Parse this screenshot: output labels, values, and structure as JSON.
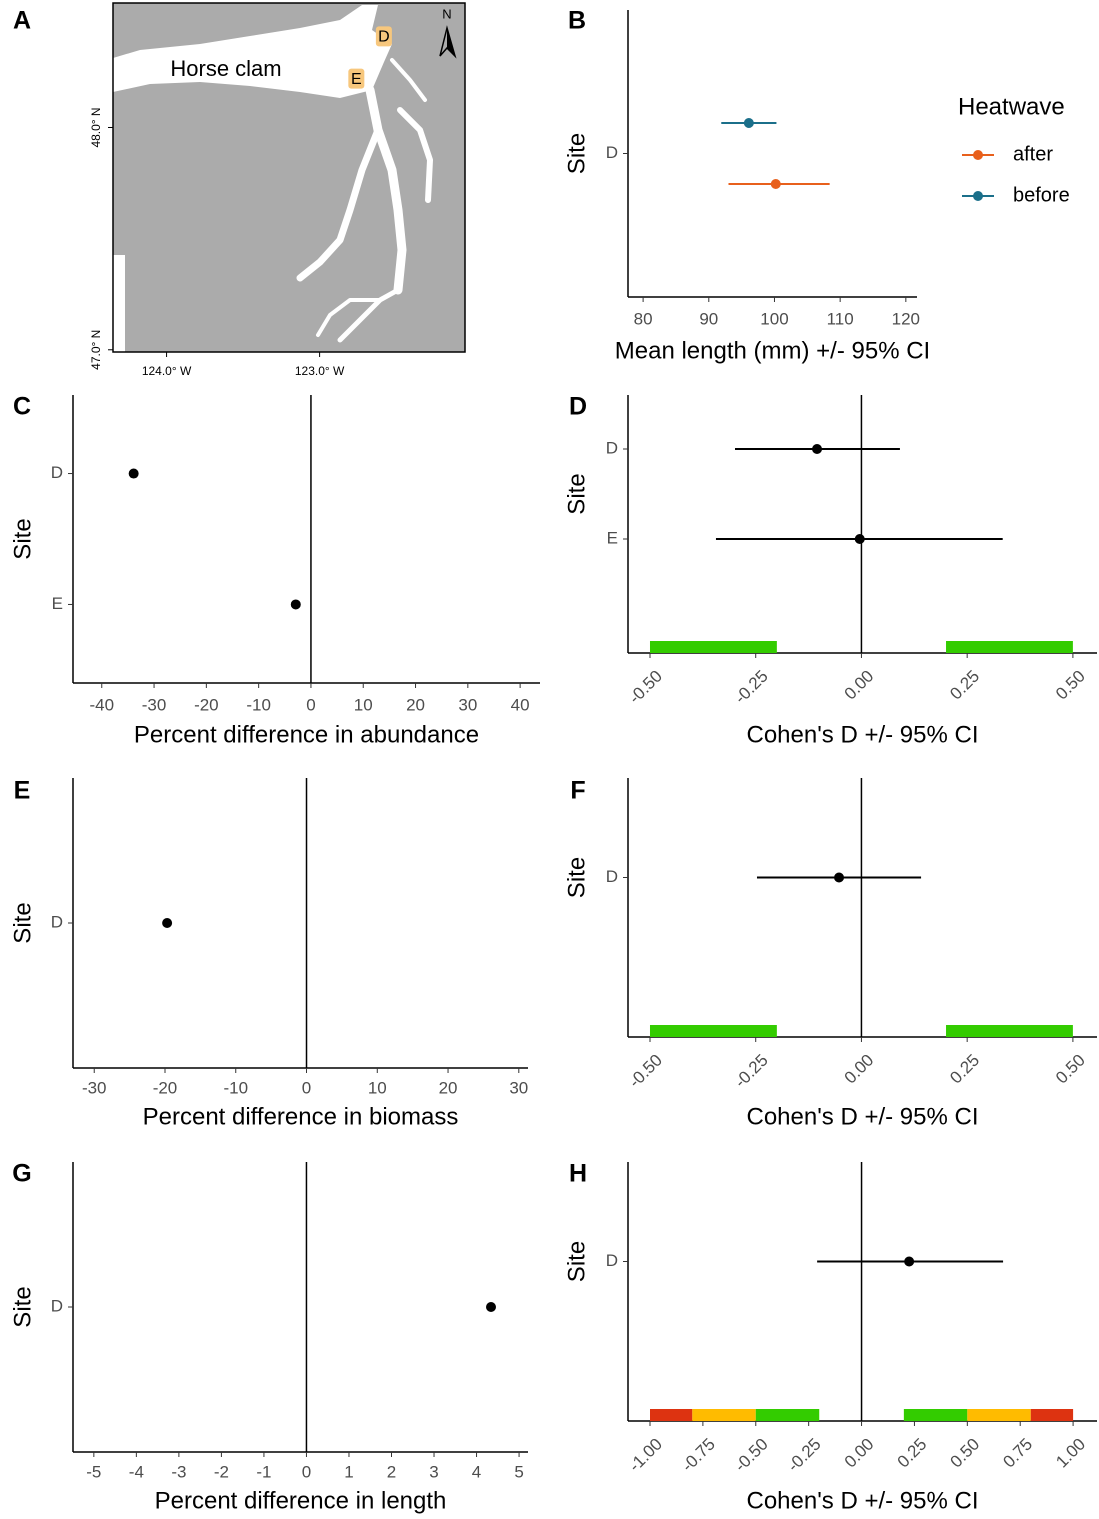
{
  "chart_data": [
    {
      "type": "map",
      "panel": "A",
      "label": "Horse clam",
      "north": "N",
      "xlim": [
        -124.35,
        -122.05
      ],
      "ylim": [
        46.99,
        48.56
      ],
      "xticks": [
        {
          "value": -124,
          "label": "124.0° W"
        },
        {
          "value": -123,
          "label": "123.0° W"
        }
      ],
      "yticks": [
        {
          "value": 48,
          "label": "48.0° N"
        },
        {
          "value": 47,
          "label": "47.0° N"
        }
      ],
      "sites": [
        {
          "label": "D",
          "lon": -122.58,
          "lat": 48.41
        },
        {
          "label": "E",
          "lon": -122.76,
          "lat": 48.22
        }
      ],
      "site_color": "#f7c77d"
    },
    {
      "type": "errorbar",
      "panel": "B",
      "ylabel": "Site",
      "xlabel": "Mean length (mm) +/- 95% CI",
      "categories": [
        "D"
      ],
      "xlim": [
        77.7,
        121.7
      ],
      "xticks": [
        80,
        90,
        100,
        110,
        120
      ],
      "legend_title": "Heatwave",
      "legend": "right",
      "series": [
        {
          "name": "after",
          "color": "#e8601c",
          "values": [
            100.2
          ],
          "lower": [
            93.0
          ],
          "upper": [
            108.4
          ]
        },
        {
          "name": "before",
          "color": "#1b6f8a",
          "values": [
            96.1
          ],
          "lower": [
            91.9
          ],
          "upper": [
            100.3
          ]
        }
      ]
    },
    {
      "type": "dot",
      "panel": "C",
      "ylabel": "Site",
      "xlabel": "Percent difference in abundance",
      "categories": [
        "D",
        "E"
      ],
      "values": [
        -33.9,
        -2.9
      ],
      "color": "#000000",
      "xlim": [
        -45.5,
        43.8
      ],
      "xticks": [
        -40,
        -30,
        -20,
        -10,
        0,
        10,
        20,
        30,
        40
      ],
      "reference_line": 0
    },
    {
      "type": "errorbar",
      "panel": "D",
      "ylabel": "Site",
      "xlabel": "Cohen's D +/- 95% CI",
      "categories": [
        "D",
        "E"
      ],
      "xlim": [
        -0.552,
        0.557
      ],
      "rotate_xticks": true,
      "xticks": [
        {
          "value": -0.5,
          "label": "-0.50"
        },
        {
          "value": -0.25,
          "label": "-0.25"
        },
        {
          "value": 0,
          "label": "0.00"
        },
        {
          "value": 0.25,
          "label": "0.25"
        },
        {
          "value": 0.5,
          "label": "0.50"
        }
      ],
      "series": [
        {
          "color": "#000000",
          "values": [
            -0.105,
            -0.004
          ],
          "lower": [
            -0.299,
            -0.344
          ],
          "upper": [
            0.091,
            0.334
          ]
        }
      ],
      "reference_line": 0,
      "bands": [
        {
          "from": -0.5,
          "to": -0.2,
          "color": "#33cc00"
        },
        {
          "from": 0.2,
          "to": 0.5,
          "color": "#33cc00"
        }
      ]
    },
    {
      "type": "dot",
      "panel": "E",
      "ylabel": "Site",
      "xlabel": "Percent difference in biomass",
      "categories": [
        "D"
      ],
      "values": [
        -19.7
      ],
      "color": "#000000",
      "xlim": [
        -33,
        31.3
      ],
      "xticks": [
        -30,
        -20,
        -10,
        0,
        10,
        20,
        30
      ],
      "reference_line": 0
    },
    {
      "type": "errorbar",
      "panel": "F",
      "ylabel": "Site",
      "xlabel": "Cohen's D +/- 95% CI",
      "categories": [
        "D"
      ],
      "xlim": [
        -0.552,
        0.557
      ],
      "rotate_xticks": true,
      "xticks": [
        {
          "value": -0.5,
          "label": "-0.50"
        },
        {
          "value": -0.25,
          "label": "-0.25"
        },
        {
          "value": 0,
          "label": "0.00"
        },
        {
          "value": 0.25,
          "label": "0.25"
        },
        {
          "value": 0.5,
          "label": "0.50"
        }
      ],
      "series": [
        {
          "color": "#000000",
          "values": [
            -0.053
          ],
          "lower": [
            -0.247
          ],
          "upper": [
            0.141
          ]
        }
      ],
      "reference_line": 0,
      "bands": [
        {
          "from": -0.5,
          "to": -0.2,
          "color": "#33cc00"
        },
        {
          "from": 0.2,
          "to": 0.5,
          "color": "#33cc00"
        }
      ]
    },
    {
      "type": "dot",
      "panel": "G",
      "ylabel": "Site",
      "xlabel": "Percent difference in length",
      "categories": [
        "D"
      ],
      "values": [
        4.34
      ],
      "color": "#000000",
      "xlim": [
        -5.49,
        5.21
      ],
      "xticks": [
        -5,
        -4,
        -3,
        -2,
        -1,
        0,
        1,
        2,
        3,
        4,
        5
      ],
      "reference_line": 0
    },
    {
      "type": "errorbar",
      "panel": "H",
      "ylabel": "Site",
      "xlabel": "Cohen's D +/- 95% CI",
      "categories": [
        "D"
      ],
      "xlim": [
        -1.104,
        1.113
      ],
      "rotate_xticks": true,
      "xticks": [
        {
          "value": -1,
          "label": "-1.00"
        },
        {
          "value": -0.75,
          "label": "-0.75"
        },
        {
          "value": -0.5,
          "label": "-0.50"
        },
        {
          "value": -0.25,
          "label": "-0.25"
        },
        {
          "value": 0,
          "label": "0.00"
        },
        {
          "value": 0.25,
          "label": "0.25"
        },
        {
          "value": 0.5,
          "label": "0.50"
        },
        {
          "value": 0.75,
          "label": "0.75"
        },
        {
          "value": 1,
          "label": "1.00"
        }
      ],
      "series": [
        {
          "color": "#000000",
          "values": [
            0.225
          ],
          "lower": [
            -0.21
          ],
          "upper": [
            0.669
          ]
        }
      ],
      "reference_line": 0,
      "bands": [
        {
          "from": -1,
          "to": -0.8,
          "color": "#dd3311"
        },
        {
          "from": -0.8,
          "to": -0.5,
          "color": "#ffbb00"
        },
        {
          "from": -0.5,
          "to": -0.2,
          "color": "#33cc00"
        },
        {
          "from": 0.2,
          "to": 0.5,
          "color": "#33cc00"
        },
        {
          "from": 0.5,
          "to": 0.8,
          "color": "#ffbb00"
        },
        {
          "from": 0.8,
          "to": 1,
          "color": "#dd3311"
        }
      ]
    }
  ]
}
